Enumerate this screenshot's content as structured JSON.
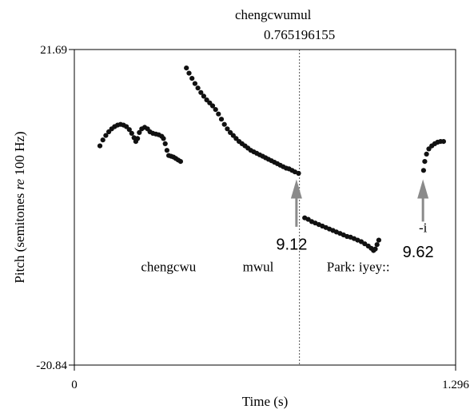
{
  "chart_data": {
    "type": "scatter",
    "title": "",
    "xlabel": "Time (s)",
    "ylabel_prefix": "Pitch (semitones ",
    "ylabel_italic": "re",
    "ylabel_suffix": " 100 Hz)",
    "xlim": [
      0,
      1.296
    ],
    "ylim": [
      -20.84,
      21.69
    ],
    "x_ticks": [
      "0",
      "1.296"
    ],
    "y_ticks": [
      "21.69",
      "-20.84"
    ],
    "cursor": {
      "label": "chengcwumul",
      "value": "0.765196155",
      "x": 0.7652
    },
    "word_labels": [
      {
        "text": "chengcwu",
        "x": 0.32,
        "y": -8.2
      },
      {
        "text": "mwul",
        "x": 0.625,
        "y": -8.2
      },
      {
        "text": "Park: iyey::",
        "x": 0.965,
        "y": -8.2
      }
    ],
    "annotations": [
      {
        "label": "9.12",
        "x": 0.755,
        "y_tip": 4.2,
        "y_tail": -2.2,
        "label_y": -5.3
      },
      {
        "label": "9.62",
        "sublabel": "-i",
        "x": 1.185,
        "y_tip": 4.2,
        "y_tail": -1.5,
        "label_y": -6.3,
        "sublabel_y": -2.9
      }
    ],
    "series": [
      {
        "points": [
          [
            0.087,
            8.7
          ],
          [
            0.097,
            9.5
          ],
          [
            0.107,
            10.1
          ],
          [
            0.117,
            10.6
          ],
          [
            0.127,
            11.0
          ],
          [
            0.137,
            11.3
          ],
          [
            0.147,
            11.5
          ],
          [
            0.157,
            11.6
          ],
          [
            0.167,
            11.5
          ],
          [
            0.177,
            11.3
          ],
          [
            0.187,
            10.9
          ],
          [
            0.195,
            10.4
          ],
          [
            0.203,
            9.8
          ],
          [
            0.209,
            9.3
          ],
          [
            0.215,
            9.7
          ],
          [
            0.221,
            10.5
          ],
          [
            0.229,
            11.0
          ],
          [
            0.239,
            11.2
          ],
          [
            0.249,
            11.0
          ],
          [
            0.257,
            10.6
          ],
          [
            0.267,
            10.4
          ],
          [
            0.277,
            10.3
          ],
          [
            0.287,
            10.2
          ],
          [
            0.297,
            10.0
          ],
          [
            0.303,
            9.7
          ],
          [
            0.309,
            9.0
          ],
          [
            0.315,
            8.1
          ],
          [
            0.321,
            7.4
          ],
          [
            0.329,
            7.3
          ],
          [
            0.337,
            7.2
          ],
          [
            0.345,
            7.0
          ],
          [
            0.353,
            6.8
          ],
          [
            0.361,
            6.6
          ]
        ]
      },
      {
        "points": [
          [
            0.381,
            19.2
          ],
          [
            0.39,
            18.5
          ],
          [
            0.4,
            17.8
          ],
          [
            0.41,
            17.1
          ],
          [
            0.42,
            16.5
          ],
          [
            0.43,
            15.9
          ],
          [
            0.44,
            15.4
          ],
          [
            0.45,
            14.9
          ],
          [
            0.46,
            14.5
          ],
          [
            0.47,
            14.1
          ],
          [
            0.48,
            13.6
          ],
          [
            0.49,
            13.0
          ],
          [
            0.5,
            12.3
          ],
          [
            0.51,
            11.6
          ],
          [
            0.52,
            11.0
          ],
          [
            0.53,
            10.5
          ],
          [
            0.54,
            10.1
          ],
          [
            0.55,
            9.7
          ],
          [
            0.56,
            9.3
          ],
          [
            0.57,
            9.0
          ],
          [
            0.58,
            8.7
          ],
          [
            0.59,
            8.4
          ],
          [
            0.6,
            8.1
          ],
          [
            0.61,
            7.9
          ],
          [
            0.62,
            7.7
          ],
          [
            0.63,
            7.5
          ],
          [
            0.64,
            7.3
          ],
          [
            0.65,
            7.1
          ],
          [
            0.66,
            6.9
          ],
          [
            0.67,
            6.7
          ],
          [
            0.68,
            6.5
          ],
          [
            0.69,
            6.3
          ],
          [
            0.7,
            6.1
          ],
          [
            0.71,
            5.9
          ],
          [
            0.72,
            5.7
          ],
          [
            0.73,
            5.6
          ],
          [
            0.74,
            5.4
          ],
          [
            0.75,
            5.2
          ],
          [
            0.762,
            5.0
          ]
        ]
      },
      {
        "points": [
          [
            0.783,
            -1.0
          ],
          [
            0.795,
            -1.2
          ],
          [
            0.807,
            -1.5
          ],
          [
            0.819,
            -1.7
          ],
          [
            0.831,
            -1.9
          ],
          [
            0.843,
            -2.1
          ],
          [
            0.855,
            -2.3
          ],
          [
            0.867,
            -2.5
          ],
          [
            0.879,
            -2.7
          ],
          [
            0.891,
            -2.9
          ],
          [
            0.903,
            -3.1
          ],
          [
            0.915,
            -3.3
          ],
          [
            0.927,
            -3.5
          ],
          [
            0.939,
            -3.6
          ],
          [
            0.951,
            -3.8
          ],
          [
            0.963,
            -4.0
          ],
          [
            0.975,
            -4.2
          ],
          [
            0.987,
            -4.5
          ],
          [
            0.999,
            -4.8
          ],
          [
            1.009,
            -5.1
          ],
          [
            1.017,
            -5.4
          ],
          [
            1.023,
            -5.2
          ],
          [
            1.029,
            -4.6
          ],
          [
            1.035,
            -4.0
          ]
        ]
      },
      {
        "points": [
          [
            1.187,
            5.4
          ],
          [
            1.191,
            6.6
          ],
          [
            1.197,
            7.6
          ],
          [
            1.205,
            8.3
          ],
          [
            1.215,
            8.7
          ],
          [
            1.225,
            9.0
          ],
          [
            1.235,
            9.2
          ],
          [
            1.245,
            9.3
          ],
          [
            1.255,
            9.3
          ]
        ]
      }
    ]
  }
}
